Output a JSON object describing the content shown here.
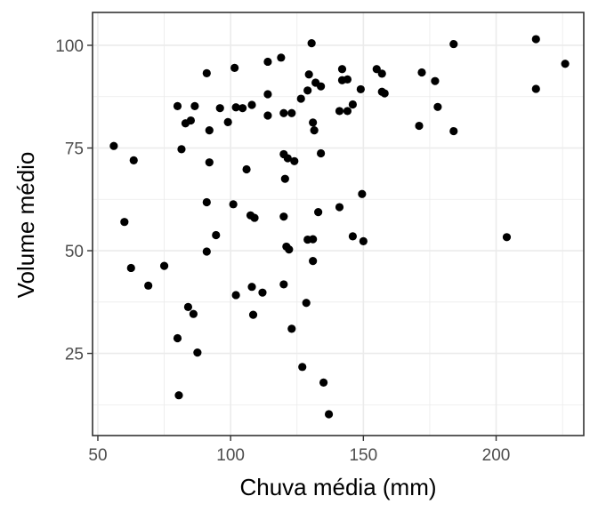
{
  "chart_data": {
    "type": "scatter",
    "title": "",
    "xlabel": "Chuva média (mm)",
    "ylabel": "Volume médio",
    "xlim": [
      48,
      233
    ],
    "ylim": [
      5,
      108
    ],
    "x_ticks": [
      50,
      100,
      150,
      200
    ],
    "y_ticks": [
      25,
      50,
      75,
      100
    ],
    "grid": true,
    "legend": "none",
    "point_color": "#000000",
    "grid_color": "#ebebeb",
    "panel_border_color": "#333333",
    "series": [
      {
        "points": [
          [
            56,
            75.5
          ],
          [
            60,
            57
          ],
          [
            62.5,
            45.8
          ],
          [
            63.5,
            72
          ],
          [
            69,
            41.5
          ],
          [
            75,
            46.3
          ],
          [
            80,
            85.2
          ],
          [
            80,
            28.7
          ],
          [
            80.5,
            14.8
          ],
          [
            81.5,
            74.7
          ],
          [
            83,
            81
          ],
          [
            84,
            36.3
          ],
          [
            85,
            81.7
          ],
          [
            86,
            34.6
          ],
          [
            86.5,
            85.2
          ],
          [
            87.5,
            25.2
          ],
          [
            91,
            93.2
          ],
          [
            91,
            61.8
          ],
          [
            91,
            49.8
          ],
          [
            92,
            79.3
          ],
          [
            92,
            71.5
          ],
          [
            94.5,
            53.8
          ],
          [
            96,
            84.7
          ],
          [
            99,
            81.3
          ],
          [
            101,
            61.3
          ],
          [
            101.5,
            94.5
          ],
          [
            102,
            84.9
          ],
          [
            102,
            39.2
          ],
          [
            104.5,
            84.7
          ],
          [
            106,
            69.8
          ],
          [
            107.5,
            58.6
          ],
          [
            108,
            85.5
          ],
          [
            108,
            41.2
          ],
          [
            108.5,
            34.4
          ],
          [
            109,
            58
          ],
          [
            112,
            39.8
          ],
          [
            114,
            96
          ],
          [
            114,
            82.9
          ],
          [
            114,
            88.1
          ],
          [
            119,
            97
          ],
          [
            120,
            73.5
          ],
          [
            120,
            83.5
          ],
          [
            120,
            58.3
          ],
          [
            120,
            41.8
          ],
          [
            120.5,
            67.5
          ],
          [
            121,
            51
          ],
          [
            121.5,
            72.5
          ],
          [
            122,
            50.3
          ],
          [
            123,
            83.5
          ],
          [
            123,
            31
          ],
          [
            124,
            71.8
          ],
          [
            126.5,
            87
          ],
          [
            127,
            21.7
          ],
          [
            128.5,
            37.3
          ],
          [
            129,
            52.7
          ],
          [
            129,
            89
          ],
          [
            129.5,
            92.9
          ],
          [
            130.5,
            100.5
          ],
          [
            131,
            81.2
          ],
          [
            131,
            52.8
          ],
          [
            131,
            47.5
          ],
          [
            131.5,
            79.3
          ],
          [
            132,
            90.9
          ],
          [
            133,
            59.4
          ],
          [
            134,
            90
          ],
          [
            134,
            73.7
          ],
          [
            135,
            17.9
          ],
          [
            137,
            10.2
          ],
          [
            141,
            84
          ],
          [
            141,
            60.6
          ],
          [
            142,
            91.5
          ],
          [
            142,
            94.2
          ],
          [
            144,
            91.7
          ],
          [
            144,
            84
          ],
          [
            146,
            85.6
          ],
          [
            146,
            53.5
          ],
          [
            149,
            89.3
          ],
          [
            149.5,
            63.8
          ],
          [
            150,
            52.3
          ],
          [
            155,
            94.2
          ],
          [
            157,
            93.1
          ],
          [
            157,
            88.7
          ],
          [
            158,
            88.3
          ],
          [
            171,
            80.4
          ],
          [
            172,
            93.4
          ],
          [
            177,
            91.3
          ],
          [
            178,
            85
          ],
          [
            184,
            100.3
          ],
          [
            184,
            79.1
          ],
          [
            204,
            53.3
          ],
          [
            215,
            101.5
          ],
          [
            215,
            89.4
          ],
          [
            226,
            95.5
          ]
        ]
      }
    ]
  }
}
